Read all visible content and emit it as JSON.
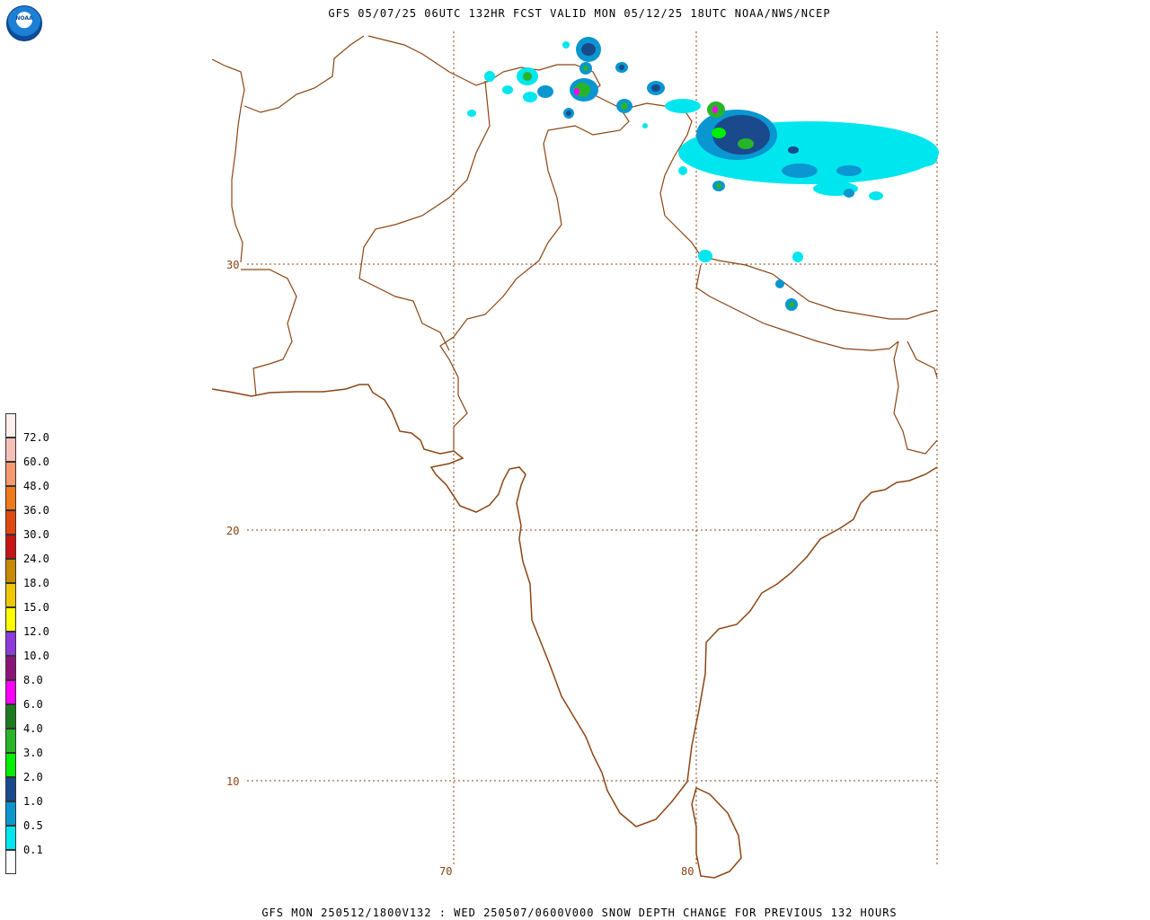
{
  "header": {
    "title": "GFS 05/07/25 06UTC 132HR FCST VALID MON 05/12/25 18UTC NOAA/NWS/NCEP",
    "logo_text": "NOAA"
  },
  "footer": {
    "caption": "GFS MON 250512/1800V132 : WED 250507/0600V000 SNOW DEPTH CHANGE FOR PREVIOUS 132 HOURS"
  },
  "map": {
    "lat_labels": [
      "30",
      "20",
      "10"
    ],
    "lon_labels": [
      "70",
      "80"
    ],
    "border_color": "#8b4513"
  },
  "legend": {
    "items": [
      {
        "label": "72.0",
        "color": "#f5c0b8"
      },
      {
        "label": "60.0",
        "color": "#f59a6e"
      },
      {
        "label": "48.0",
        "color": "#f07a18"
      },
      {
        "label": "36.0",
        "color": "#e04a10"
      },
      {
        "label": "30.0",
        "color": "#c81414"
      },
      {
        "label": "24.0",
        "color": "#c88a00"
      },
      {
        "label": "18.0",
        "color": "#f0c800"
      },
      {
        "label": "15.0",
        "color": "#ffff00"
      },
      {
        "label": "12.0",
        "color": "#8c3cdc"
      },
      {
        "label": "10.0",
        "color": "#8c1478"
      },
      {
        "label": "8.0",
        "color": "#ff00ff"
      },
      {
        "label": "6.0",
        "color": "#1e7a1e"
      },
      {
        "label": "4.0",
        "color": "#28b428"
      },
      {
        "label": "3.0",
        "color": "#00ee00"
      },
      {
        "label": "2.0",
        "color": "#1a4a8c"
      },
      {
        "label": "1.0",
        "color": "#0a96d0"
      },
      {
        "label": "0.5",
        "color": "#00e6ee"
      },
      {
        "label": "0.1",
        "color": "#ffffff"
      }
    ],
    "top_color": "#fff0ee"
  }
}
